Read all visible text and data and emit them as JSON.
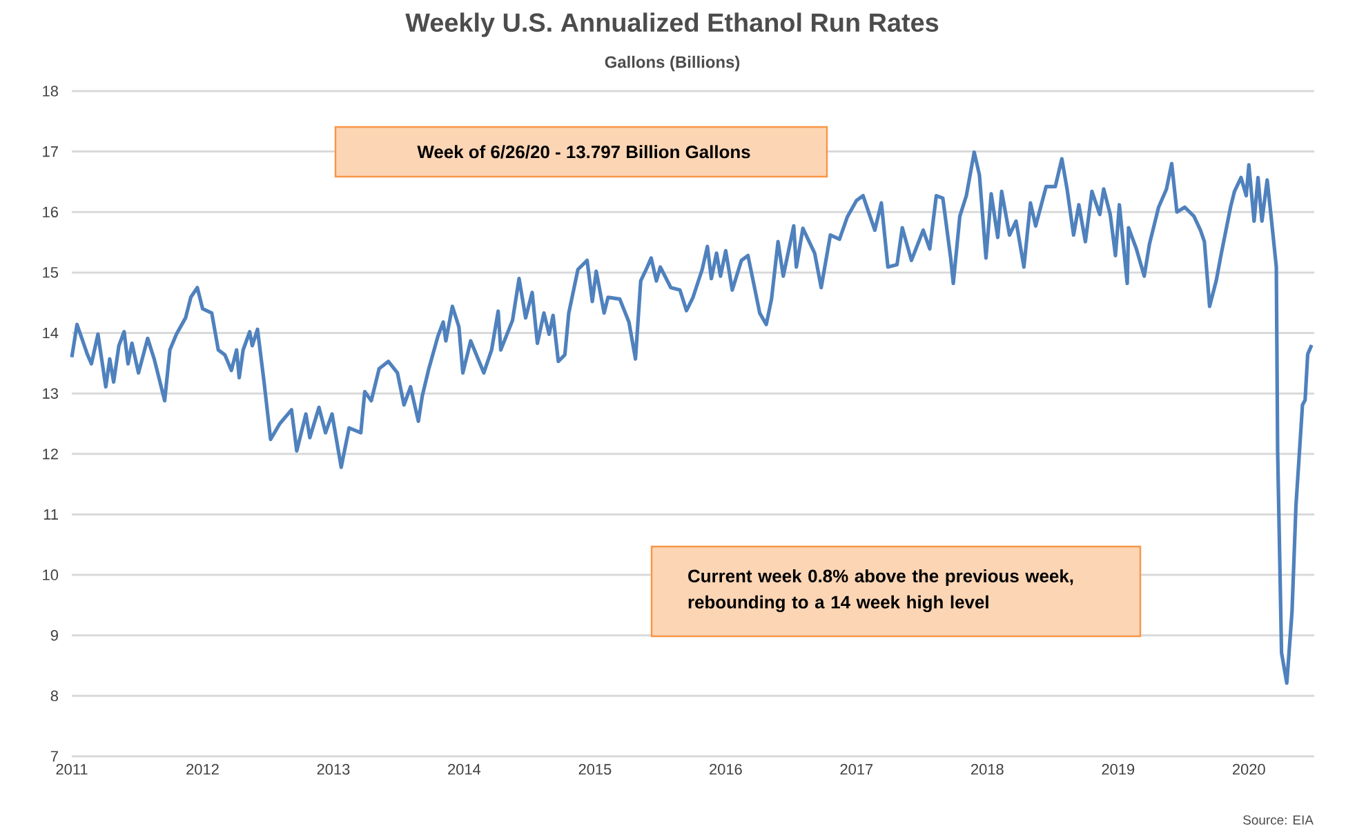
{
  "chart_data": {
    "type": "line",
    "title": "Weekly U.S. Annualized Ethanol Run Rates",
    "subtitle": "Gallons (Billions)",
    "annotations": [
      "Week of 6/26/20 - 13.797 Billion Gallons",
      "Current week 0.8% above the previous week, rebounding to a 14 week high level",
      "Source: EIA"
    ],
    "xlim": [
      2011,
      2020.5
    ],
    "xticks": [
      2011,
      2012,
      2013,
      2014,
      2015,
      2016,
      2017,
      2018,
      2019,
      2020
    ],
    "ylim": [
      7,
      18
    ],
    "yticks": [
      7,
      8,
      9,
      10,
      11,
      12,
      13,
      14,
      15,
      16,
      17,
      18
    ],
    "grid": "y",
    "marker": "none",
    "line_style": "solid",
    "series": [
      {
        "color": "#4f81bd",
        "x": [
          2011.0,
          2011.04,
          2011.12,
          2011.15,
          2011.2,
          2011.26,
          2011.29,
          2011.32,
          2011.36,
          2011.4,
          2011.43,
          2011.46,
          2011.51,
          2011.58,
          2011.63,
          2011.71,
          2011.75,
          2011.8,
          2011.87,
          2011.91,
          2011.96,
          2012.0,
          2012.07,
          2012.12,
          2012.17,
          2012.22,
          2012.26,
          2012.28,
          2012.31,
          2012.36,
          2012.38,
          2012.42,
          2012.47,
          2012.52,
          2012.59,
          2012.68,
          2012.72,
          2012.79,
          2012.82,
          2012.89,
          2012.94,
          2012.99,
          2013.06,
          2013.12,
          2013.21,
          2013.24,
          2013.29,
          2013.35,
          2013.42,
          2013.49,
          2013.54,
          2013.59,
          2013.65,
          2013.68,
          2013.73,
          2013.8,
          2013.84,
          2013.86,
          2013.91,
          2013.96,
          2013.99,
          2014.05,
          2014.15,
          2014.21,
          2014.26,
          2014.28,
          2014.37,
          2014.42,
          2014.47,
          2014.52,
          2014.56,
          2014.61,
          2014.65,
          2014.68,
          2014.72,
          2014.77,
          2014.8,
          2014.87,
          2014.94,
          2014.98,
          2015.01,
          2015.07,
          2015.1,
          2015.19,
          2015.26,
          2015.31,
          2015.35,
          2015.4,
          2015.43,
          2015.47,
          2015.5,
          2015.58,
          2015.65,
          2015.7,
          2015.75,
          2015.82,
          2015.86,
          2015.89,
          2015.93,
          2015.96,
          2016.0,
          2016.05,
          2016.12,
          2016.17,
          2016.26,
          2016.31,
          2016.35,
          2016.4,
          2016.44,
          2016.52,
          2016.54,
          2016.59,
          2016.68,
          2016.73,
          2016.8,
          2016.87,
          2016.93,
          2017.0,
          2017.05,
          2017.14,
          2017.19,
          2017.24,
          2017.31,
          2017.35,
          2017.42,
          2017.51,
          2017.56,
          2017.61,
          2017.66,
          2017.72,
          2017.74,
          2017.79,
          2017.84,
          2017.9,
          2017.94,
          2017.99,
          2018.03,
          2018.08,
          2018.11,
          2018.17,
          2018.22,
          2018.28,
          2018.33,
          2018.37,
          2018.45,
          2018.52,
          2018.57,
          2018.61,
          2018.66,
          2018.7,
          2018.75,
          2018.8,
          2018.86,
          2018.89,
          2018.94,
          2018.98,
          2019.01,
          2019.07,
          2019.08,
          2019.14,
          2019.2,
          2019.24,
          2019.31,
          2019.37,
          2019.41,
          2019.45,
          2019.51,
          2019.58,
          2019.63,
          2019.66,
          2019.7,
          2019.75,
          2019.79,
          2019.86,
          2019.89,
          2019.94,
          2019.98,
          2020.0,
          2020.04,
          2020.07,
          2020.1,
          2020.14,
          2020.17,
          2020.21,
          2020.22,
          2020.25,
          2020.29,
          2020.33,
          2020.36,
          2020.41,
          2020.43,
          2020.45,
          2020.48
        ],
        "values": [
          13.6,
          14.14,
          13.64,
          13.49,
          13.98,
          13.11,
          13.57,
          13.19,
          13.79,
          14.02,
          13.49,
          13.83,
          13.34,
          13.91,
          13.57,
          12.88,
          13.72,
          13.98,
          14.25,
          14.59,
          14.75,
          14.4,
          14.33,
          13.72,
          13.64,
          13.38,
          13.72,
          13.26,
          13.72,
          14.02,
          13.79,
          14.06,
          13.19,
          12.24,
          12.5,
          12.73,
          12.05,
          12.66,
          12.27,
          12.77,
          12.35,
          12.66,
          11.78,
          12.43,
          12.35,
          13.03,
          12.88,
          13.41,
          13.53,
          13.34,
          12.81,
          13.11,
          12.54,
          12.96,
          13.41,
          13.95,
          14.18,
          13.87,
          14.44,
          14.1,
          13.34,
          13.87,
          13.34,
          13.72,
          14.36,
          13.72,
          14.21,
          14.9,
          14.25,
          14.67,
          13.83,
          14.33,
          13.98,
          14.29,
          13.53,
          13.64,
          14.33,
          15.05,
          15.2,
          14.52,
          15.02,
          14.33,
          14.59,
          14.56,
          14.18,
          13.57,
          14.86,
          15.09,
          15.24,
          14.86,
          15.09,
          14.75,
          14.71,
          14.37,
          14.59,
          15.05,
          15.43,
          14.9,
          15.32,
          14.94,
          15.36,
          14.71,
          15.2,
          15.28,
          14.33,
          14.14,
          14.56,
          15.51,
          14.94,
          15.77,
          15.09,
          15.73,
          15.32,
          14.75,
          15.62,
          15.55,
          15.92,
          16.19,
          16.27,
          15.7,
          16.15,
          15.09,
          15.13,
          15.74,
          15.2,
          15.7,
          15.39,
          16.27,
          16.23,
          15.24,
          14.82,
          15.93,
          16.27,
          16.99,
          16.61,
          15.24,
          16.3,
          15.58,
          16.34,
          15.62,
          15.85,
          15.09,
          16.15,
          15.77,
          16.42,
          16.42,
          16.88,
          16.38,
          15.62,
          16.12,
          15.51,
          16.34,
          15.96,
          16.38,
          15.96,
          15.28,
          16.12,
          14.82,
          15.74,
          15.39,
          14.94,
          15.47,
          16.08,
          16.38,
          16.8,
          16.0,
          16.08,
          15.93,
          15.7,
          15.51,
          14.44,
          14.86,
          15.32,
          16.08,
          16.34,
          16.57,
          16.27,
          16.78,
          15.85,
          16.57,
          15.85,
          16.53,
          15.93,
          15.09,
          12.05,
          8.71,
          8.21,
          9.39,
          11.14,
          12.81,
          12.89,
          13.65,
          13.8
        ]
      }
    ]
  }
}
